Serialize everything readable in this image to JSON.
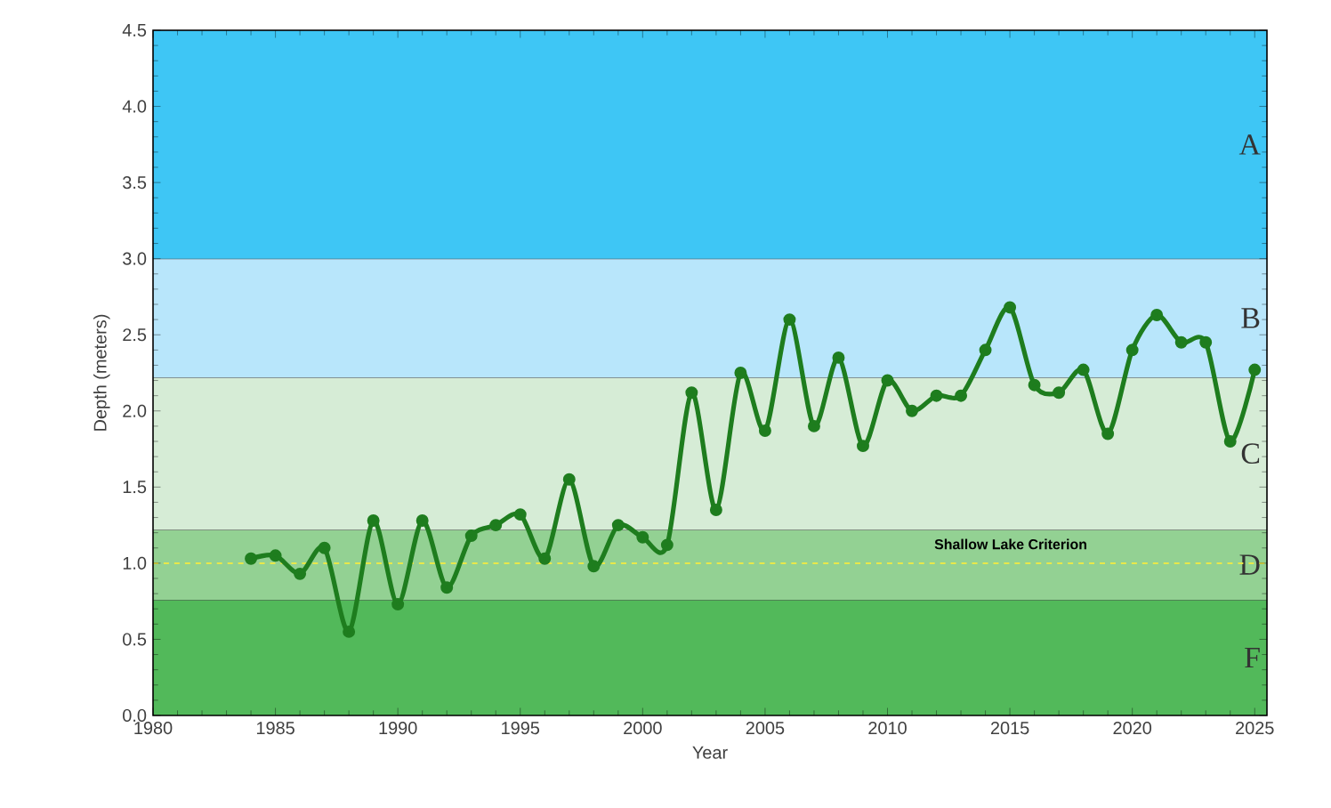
{
  "chart_data": {
    "type": "line",
    "xlabel": "Year",
    "ylabel": "Depth (meters)",
    "x": [
      1984,
      1985,
      1986,
      1987,
      1988,
      1989,
      1990,
      1991,
      1992,
      1993,
      1994,
      1995,
      1996,
      1997,
      1998,
      1999,
      2000,
      2001,
      2002,
      2003,
      2004,
      2005,
      2006,
      2007,
      2008,
      2009,
      2010,
      2011,
      2012,
      2013,
      2014,
      2015,
      2016,
      2017,
      2018,
      2019,
      2020,
      2021,
      2022,
      2023,
      2024,
      2025
    ],
    "series": [
      {
        "color": "#1e7d1e",
        "values": [
          1.03,
          1.05,
          0.93,
          1.1,
          0.55,
          1.28,
          0.73,
          1.28,
          0.84,
          1.18,
          1.25,
          1.32,
          1.03,
          1.55,
          0.98,
          1.25,
          1.17,
          1.12,
          2.12,
          1.35,
          2.25,
          1.87,
          2.6,
          1.9,
          2.35,
          1.77,
          2.2,
          2.0,
          2.1,
          2.1,
          2.4,
          2.68,
          2.17,
          2.12,
          2.27,
          1.85,
          2.4,
          2.63,
          2.45,
          2.45,
          1.8,
          2.27
        ]
      }
    ],
    "xlim": [
      1980,
      2025.5
    ],
    "ylim": [
      0,
      4.5
    ],
    "xticks": [
      1980,
      1985,
      1990,
      1995,
      2000,
      2005,
      2010,
      2015,
      2020,
      2025
    ],
    "yticks": [
      {
        "value": 0,
        "label": "0.0"
      },
      {
        "value": 0.5,
        "label": "0.5"
      },
      {
        "value": 1,
        "label": "1.0"
      },
      {
        "value": 1.5,
        "label": "1.5"
      },
      {
        "value": 2,
        "label": "2.0"
      },
      {
        "value": 2.5,
        "label": "2.5"
      },
      {
        "value": 3,
        "label": "3.0"
      },
      {
        "value": 3.5,
        "label": "3.5"
      },
      {
        "value": 4,
        "label": "4.0"
      },
      {
        "value": 4.5,
        "label": "4.5"
      }
    ],
    "bands": [
      {
        "axis": "y",
        "from": 0,
        "to": 0.76,
        "label": "F",
        "color": "#52b95a"
      },
      {
        "axis": "y",
        "from": 0.76,
        "to": 1.22,
        "label": "D",
        "color": "#93d193"
      },
      {
        "axis": "y",
        "from": 1.22,
        "to": 2.22,
        "label": "C",
        "color": "#d6ecd6"
      },
      {
        "axis": "y",
        "from": 2.22,
        "to": 3.0,
        "label": "B",
        "color": "#b8e6fb"
      },
      {
        "axis": "y",
        "from": 3.0,
        "to": 4.5,
        "label": "A",
        "color": "#3ec6f5"
      }
    ],
    "ref_lines": [
      {
        "axis": "y",
        "value": 1.0,
        "label": "Shallow Lake Criterion",
        "color": "#e8e84a",
        "line_style": "dashed"
      }
    ],
    "marker": "circle",
    "line_style": "solid",
    "grid": false
  }
}
